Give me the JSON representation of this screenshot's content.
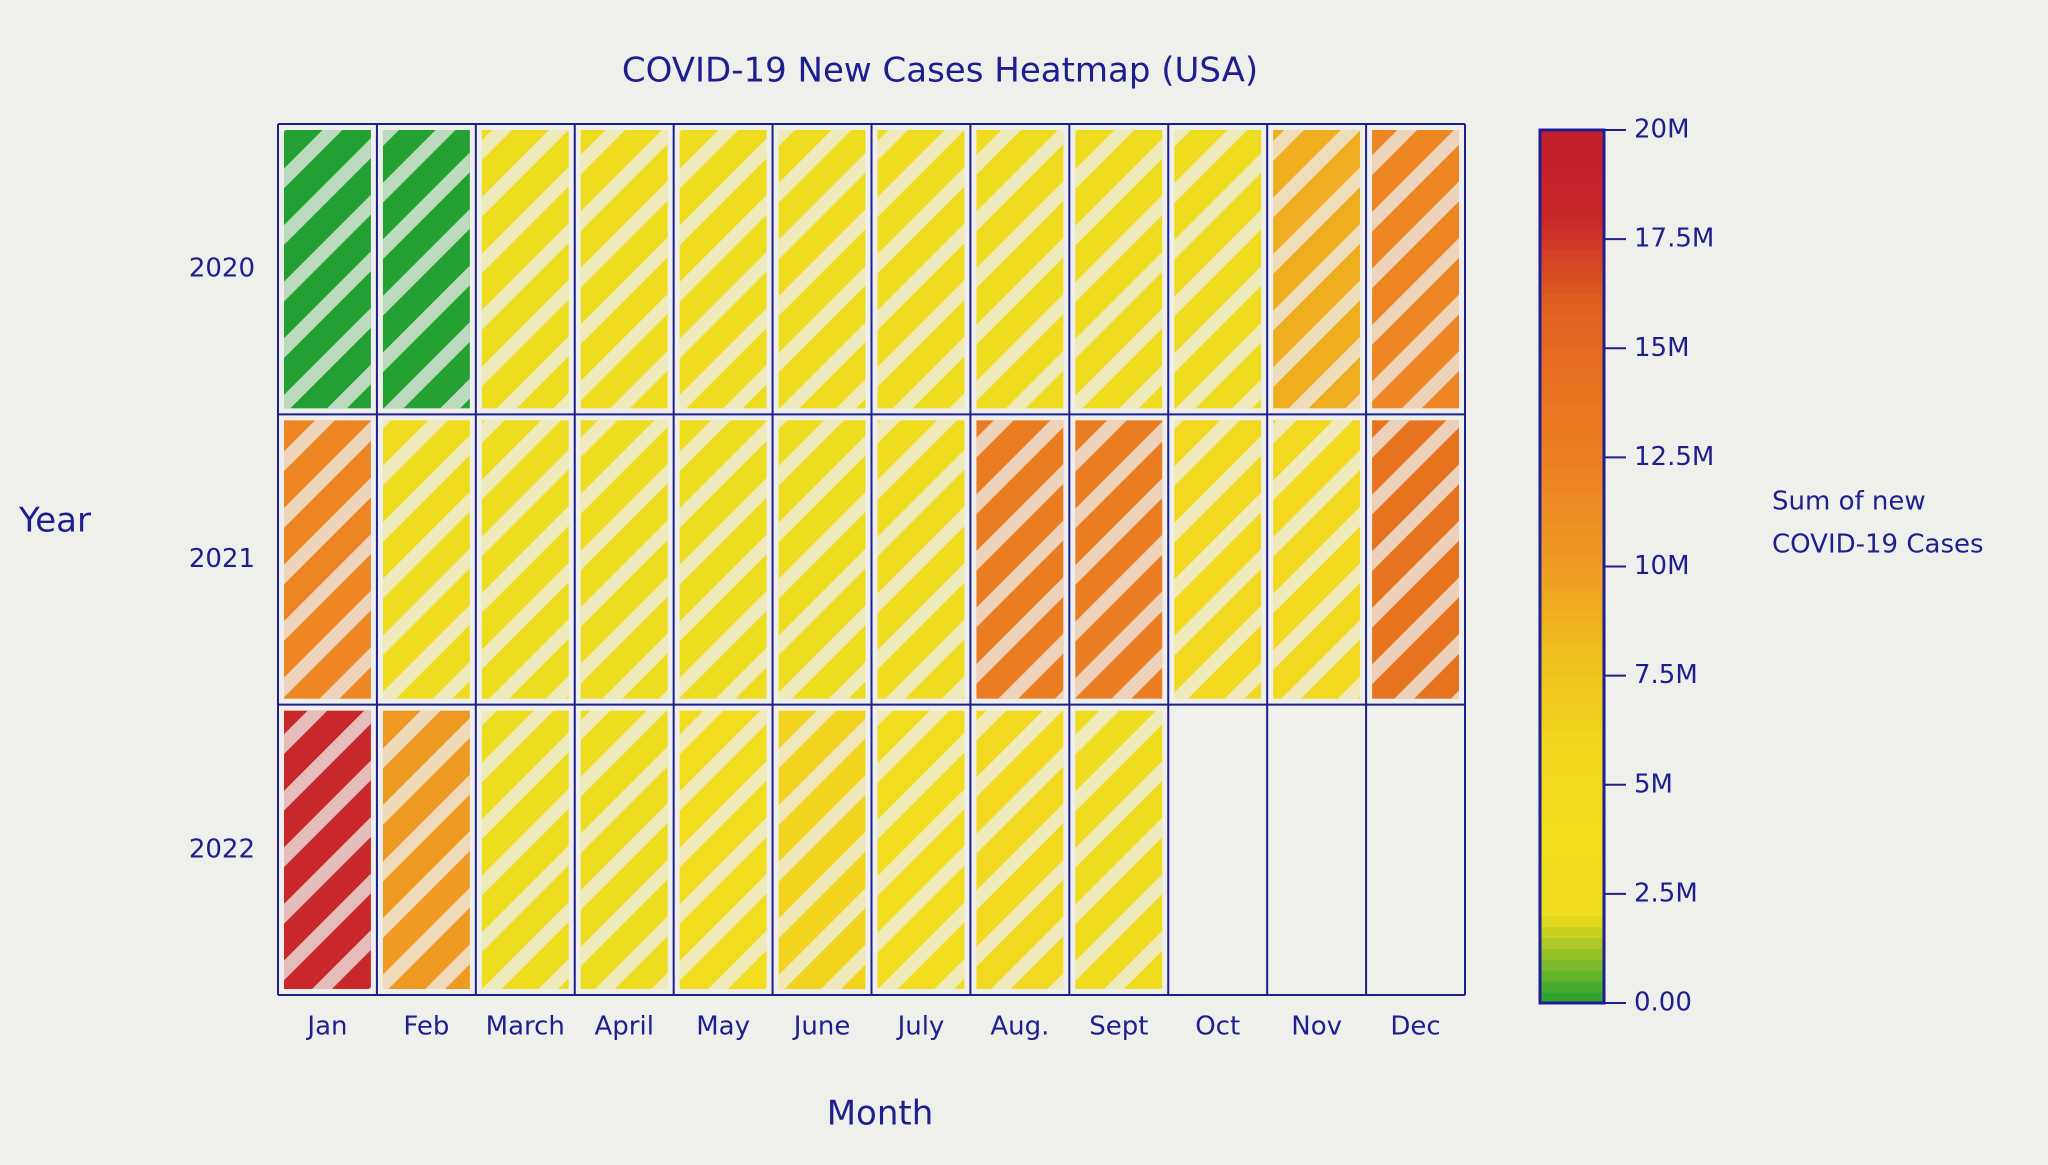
{
  "chart_data": {
    "type": "heatmap",
    "title": "COVID-19 New Cases Heatmap (USA)",
    "x_label": "Month",
    "y_label": "Year",
    "categories": [
      "Jan",
      "Feb",
      "March",
      "April",
      "May",
      "June",
      "July",
      "Aug.",
      "Sept",
      "Oct",
      "Nov",
      "Dec"
    ],
    "rows": [
      "2020",
      "2021",
      "2022"
    ],
    "values": [
      [
        10000,
        30000,
        2000000,
        3000000,
        3000000,
        3000000,
        3000000,
        3000000,
        3000000,
        3000000,
        9000000,
        12000000
      ],
      [
        12000000,
        3000000,
        2000000,
        2000000,
        2000000,
        2000000,
        3000000,
        13000000,
        13000000,
        5000000,
        5000000,
        14000000
      ],
      [
        18000000,
        10000000,
        2000000,
        2000000,
        4000000,
        6000000,
        4000000,
        5000000,
        2500000,
        null,
        null,
        null
      ]
    ],
    "colorbar_label": [
      "Sum of new",
      "COVID-19 Cases"
    ],
    "colors": [
      "#22a033",
      "#eedc1e",
      "#f2dc1e",
      "#f2d41e",
      "#f0c01e",
      "#ee9a22",
      "#ec8522",
      "#e8731f",
      "#e06020",
      "#c8282a",
      "#c01e2a"
    ],
    "clim": [
      0,
      20000000
    ],
    "cticks": [
      {
        "value": 0,
        "label": "0.00"
      },
      {
        "value": 2500000,
        "label": "2.5M"
      },
      {
        "value": 5000000,
        "label": "5M"
      },
      {
        "value": 7500000,
        "label": "7.5M"
      },
      {
        "value": 10000000,
        "label": "10M"
      },
      {
        "value": 12500000,
        "label": "12.5M"
      },
      {
        "value": 15000000,
        "label": "15M"
      },
      {
        "value": 17500000,
        "label": "17.5M"
      },
      {
        "value": 20000000,
        "label": "20M"
      }
    ],
    "line_color": "#1d1f8f"
  }
}
